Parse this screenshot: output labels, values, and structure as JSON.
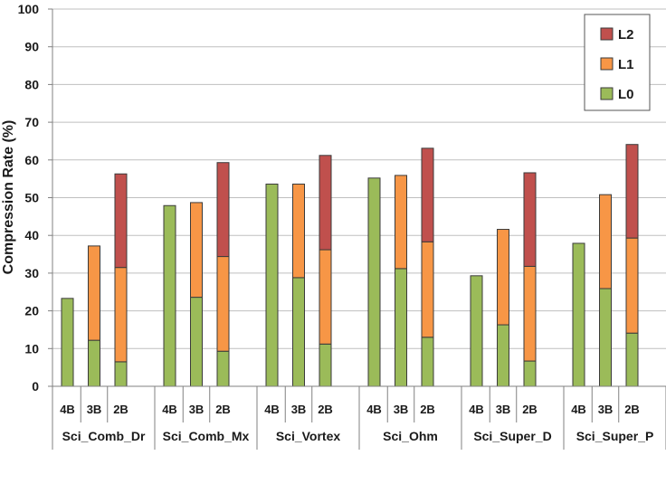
{
  "chart_data": {
    "type": "bar",
    "stacked": true,
    "ylabel": "Compression Rate (%)",
    "ylim": [
      0,
      100
    ],
    "yticks": [
      0,
      10,
      20,
      30,
      40,
      50,
      60,
      70,
      80,
      90,
      100
    ],
    "grid": true,
    "legend_position": "top-right",
    "groups": [
      "Sci_Comb_Dr",
      "Sci_Comb_Mx",
      "Sci_Vortex",
      "Sci_Ohm",
      "Sci_Super_D",
      "Sci_Super_P"
    ],
    "categories": [
      "4B",
      "3B",
      "2B"
    ],
    "series": [
      {
        "name": "L0",
        "color": "#9BBB59",
        "values": [
          [
            23.3,
            12.2,
            6.5
          ],
          [
            47.9,
            23.6,
            9.3
          ],
          [
            53.6,
            28.8,
            11.2
          ],
          [
            55.2,
            31.2,
            13.0
          ],
          [
            29.3,
            16.3,
            6.7
          ],
          [
            37.9,
            25.9,
            14.1
          ]
        ]
      },
      {
        "name": "L1",
        "color": "#F79646",
        "values": [
          [
            0,
            25.0,
            25.0
          ],
          [
            0,
            25.1,
            25.1
          ],
          [
            0,
            24.8,
            25.0
          ],
          [
            0,
            24.7,
            25.3
          ],
          [
            0,
            25.3,
            25.1
          ],
          [
            0,
            24.9,
            25.2
          ]
        ]
      },
      {
        "name": "L2",
        "color": "#C0504D",
        "values": [
          [
            0,
            0,
            24.8
          ],
          [
            0,
            0,
            24.9
          ],
          [
            0,
            0,
            25.0
          ],
          [
            0,
            0,
            24.8
          ],
          [
            0,
            0,
            24.8
          ],
          [
            0,
            0,
            24.8
          ]
        ]
      }
    ],
    "legend": [
      "L2",
      "L1",
      "L0"
    ]
  }
}
